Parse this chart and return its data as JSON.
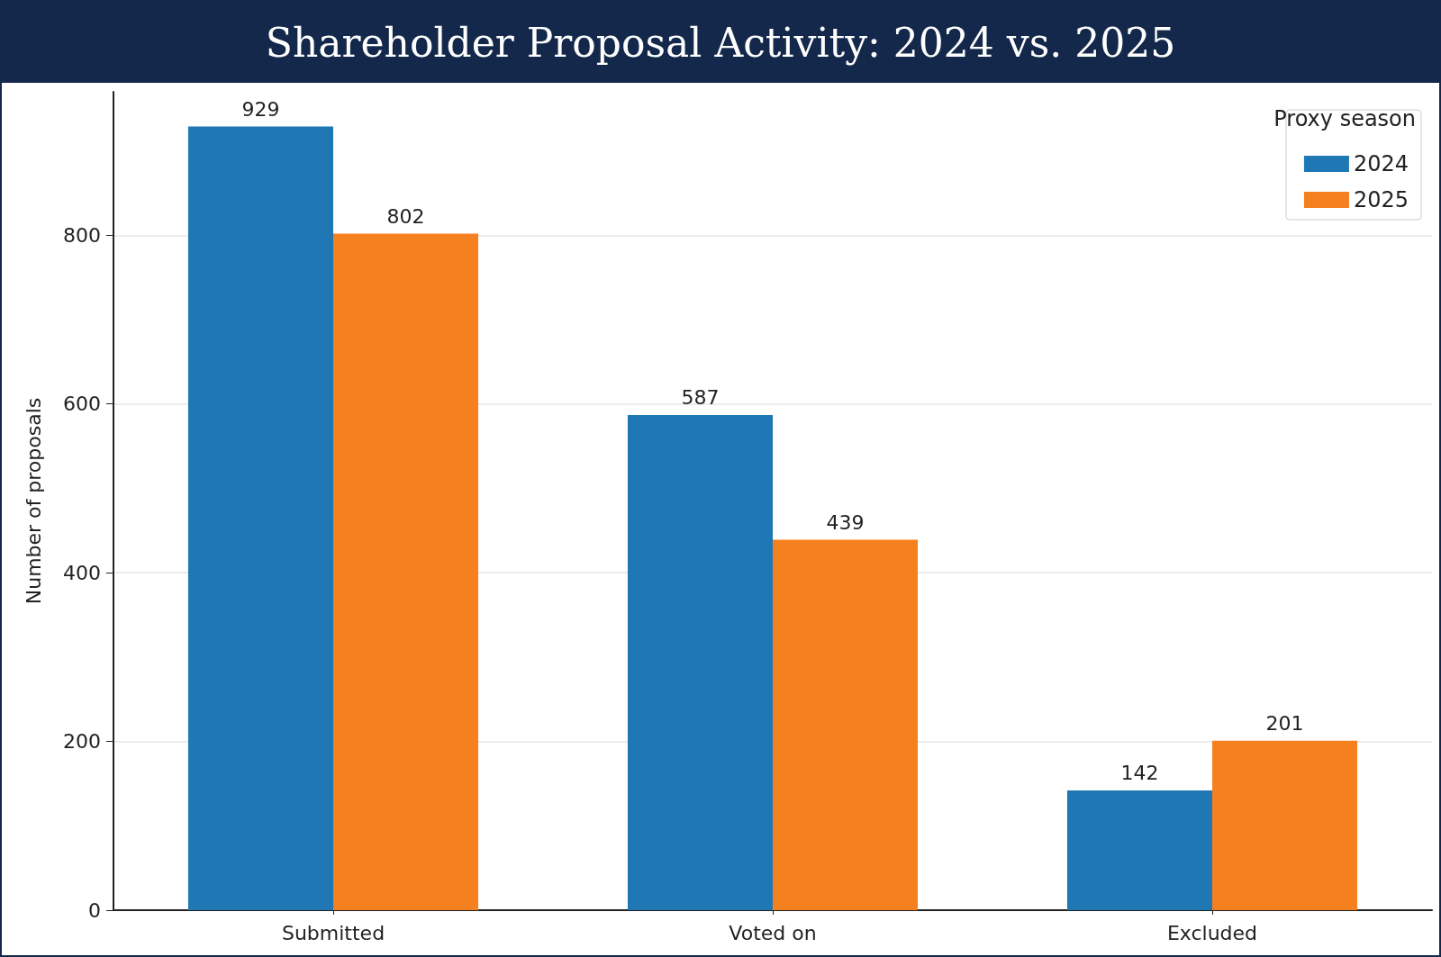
{
  "chart_data": {
    "type": "bar",
    "title": "Shareholder Proposal Activity: 2024 vs. 2025",
    "categories": [
      "Submitted",
      "Voted on",
      "Excluded"
    ],
    "series": [
      {
        "name": "2024",
        "color": "#1f77b4",
        "values": [
          929,
          587,
          142
        ]
      },
      {
        "name": "2025",
        "color": "#f58020",
        "values": [
          802,
          439,
          201
        ]
      }
    ],
    "ylabel": "Number of proposals",
    "legend_title": "Proxy season",
    "legend": "top right",
    "ylim": [
      0,
      970
    ],
    "yticks": [
      0,
      200,
      400,
      600,
      800
    ],
    "grid": "y",
    "data_labels": true
  }
}
